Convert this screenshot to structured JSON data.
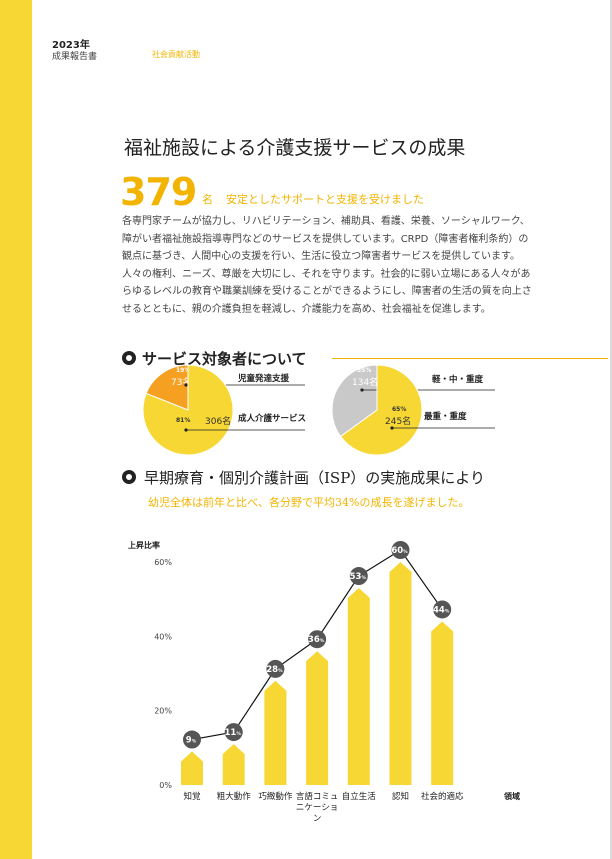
{
  "header": {
    "year": "2023年",
    "report": "成果報告書",
    "section": "社会貢献活動"
  },
  "title": "福祉施設による介護支援サービスの成果",
  "highlight": {
    "number": "379",
    "unit": "名",
    "caption": "安定としたサポートと支援を受けました"
  },
  "body": "各専門家チームが協力し、リハビリテーション、補助具、看護、栄養、ソーシャルワーク、\n障がい者福祉施設指導専門などのサービスを提供しています。CRPD（障害者権利条約）の\n観点に基づき、人間中心の支援を行い、生活に役立つ障害者サービスを提供しています。\n人々の権利、ニーズ、尊厳を大切にし、それを守ります。社会的に弱い立場にある人々があ\nらゆるレベルの教育や職業訓練を受けることができるようにし、障害者の生活の質を向上さ\nせるとともに、親の介護負担を軽減し、介護能力を高め、社会福祉を促進します。",
  "section1": {
    "title": "サービス対象者について"
  },
  "pies": [
    {
      "slices": [
        {
          "label": "児童発達支援",
          "percent": "19%",
          "count": "73名",
          "value": 19,
          "color": "#f5a020"
        },
        {
          "label": "成人介護サービス",
          "percent": "81%",
          "count": "306名",
          "value": 81,
          "color": "#f7d733"
        }
      ]
    },
    {
      "slices": [
        {
          "label": "軽・中・重度",
          "percent": "35%",
          "count": "134名",
          "value": 35,
          "color": "#c9c9c9"
        },
        {
          "label": "最重・重度",
          "percent": "65%",
          "count": "245名",
          "value": 65,
          "color": "#f7d733"
        }
      ]
    }
  ],
  "section2": {
    "title": "早期療育・個別介護計画（ISP）の実施成果により",
    "subtitle": "幼児全体は前年と比べ、各分野で平均34%の成長を遂げました。"
  },
  "chart_data": {
    "type": "bar",
    "ylabel": "上昇比率",
    "xlabel": "領域",
    "ylim": [
      0,
      60
    ],
    "yticks": [
      "0%",
      "20%",
      "40%",
      "60%"
    ],
    "categories": [
      "知覚",
      "粗大動作",
      "巧緻動作",
      "言語コミュニケーション",
      "自立生活",
      "認知",
      "社会的適応"
    ],
    "values": [
      9,
      11,
      28,
      36,
      53,
      60,
      44
    ],
    "value_suffix": "%",
    "bar_color": "#f7d733",
    "marker_color": "#555555",
    "line_color": "#111111"
  }
}
